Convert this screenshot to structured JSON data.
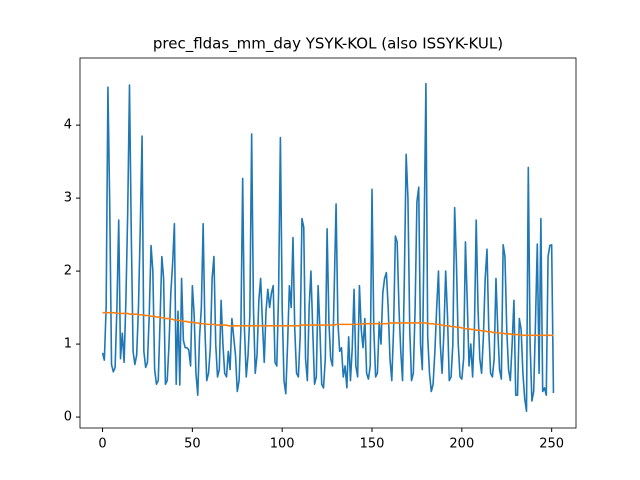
{
  "chart_data": {
    "type": "line",
    "title": "prec_fldas_mm_day YSYK-KOL (also ISSYK-KUL)",
    "x": [
      0,
      1,
      2,
      3,
      4,
      5,
      6,
      7,
      8,
      9,
      10,
      11,
      12,
      13,
      14,
      15,
      16,
      17,
      18,
      19,
      20,
      21,
      22,
      23,
      24,
      25,
      26,
      27,
      28,
      29,
      30,
      31,
      32,
      33,
      34,
      35,
      36,
      37,
      38,
      39,
      40,
      41,
      42,
      43,
      44,
      45,
      46,
      47,
      48,
      49,
      50,
      51,
      52,
      53,
      54,
      55,
      56,
      57,
      58,
      59,
      60,
      61,
      62,
      63,
      64,
      65,
      66,
      67,
      68,
      69,
      70,
      71,
      72,
      73,
      74,
      75,
      76,
      77,
      78,
      79,
      80,
      81,
      82,
      83,
      84,
      85,
      86,
      87,
      88,
      89,
      90,
      91,
      92,
      93,
      94,
      95,
      96,
      97,
      98,
      99,
      100,
      101,
      102,
      103,
      104,
      105,
      106,
      107,
      108,
      109,
      110,
      111,
      112,
      113,
      114,
      115,
      116,
      117,
      118,
      119,
      120,
      121,
      122,
      123,
      124,
      125,
      126,
      127,
      128,
      129,
      130,
      131,
      132,
      133,
      134,
      135,
      136,
      137,
      138,
      139,
      140,
      141,
      142,
      143,
      144,
      145,
      146,
      147,
      148,
      149,
      150,
      151,
      152,
      153,
      154,
      155,
      156,
      157,
      158,
      159,
      160,
      161,
      162,
      163,
      164,
      165,
      166,
      167,
      168,
      169,
      170,
      171,
      172,
      173,
      174,
      175,
      176,
      177,
      178,
      179,
      180,
      181,
      182,
      183,
      184,
      185,
      186,
      187,
      188,
      189,
      190,
      191,
      192,
      193,
      194,
      195,
      196,
      197,
      198,
      199,
      200,
      201,
      202,
      203,
      204,
      205,
      206,
      207,
      208,
      209,
      210,
      211,
      212,
      213,
      214,
      215,
      216,
      217,
      218,
      219,
      220,
      221,
      222,
      223,
      224,
      225,
      226,
      227,
      228,
      229,
      230,
      231,
      232,
      233,
      234,
      235,
      236,
      237,
      238,
      239,
      240,
      241,
      242,
      243,
      244,
      245,
      246,
      247,
      248,
      249,
      250,
      251
    ],
    "series": [
      {
        "color": "#1f77b4",
        "values": [
          0.88,
          0.78,
          1.5,
          4.52,
          2.9,
          0.72,
          0.62,
          0.68,
          1.5,
          2.7,
          0.8,
          1.15,
          0.75,
          1.6,
          2.8,
          4.55,
          2.5,
          0.9,
          0.72,
          0.85,
          1.5,
          2.6,
          3.85,
          0.9,
          0.68,
          0.75,
          1.4,
          2.35,
          2.0,
          0.65,
          0.45,
          0.5,
          1.3,
          2.2,
          1.9,
          0.45,
          0.5,
          1.0,
          1.7,
          2.1,
          2.65,
          0.45,
          1.45,
          0.44,
          1.9,
          1.05,
          0.95,
          0.95,
          0.92,
          0.7,
          1.8,
          1.4,
          0.6,
          0.3,
          1.1,
          1.5,
          2.65,
          1.2,
          0.5,
          0.6,
          0.95,
          1.9,
          2.2,
          1.0,
          0.55,
          0.65,
          1.6,
          1.0,
          0.6,
          0.55,
          0.9,
          0.65,
          1.35,
          1.1,
          0.85,
          0.35,
          0.5,
          1.2,
          3.27,
          1.2,
          0.55,
          0.85,
          1.4,
          3.88,
          1.5,
          0.6,
          0.85,
          1.6,
          1.9,
          1.3,
          0.75,
          1.45,
          1.75,
          1.5,
          1.7,
          1.8,
          0.75,
          0.7,
          1.7,
          3.83,
          1.5,
          0.5,
          0.32,
          1.0,
          1.8,
          1.5,
          2.46,
          1.2,
          0.6,
          0.55,
          1.1,
          2.72,
          2.6,
          0.8,
          0.5,
          1.5,
          2.0,
          1.2,
          0.45,
          0.55,
          1.8,
          1.2,
          0.45,
          0.4,
          0.8,
          2.58,
          1.3,
          0.8,
          0.7,
          1.8,
          2.92,
          1.3,
          0.9,
          0.95,
          0.55,
          0.7,
          0.4,
          1.1,
          0.5,
          0.95,
          1.75,
          0.7,
          0.55,
          1.8,
          1.2,
          0.95,
          1.35,
          0.6,
          0.52,
          0.7,
          3.12,
          1.2,
          0.55,
          0.6,
          1.3,
          1.0,
          1.7,
          1.9,
          1.98,
          1.5,
          0.8,
          0.5,
          1.2,
          2.48,
          2.4,
          1.5,
          0.9,
          0.5,
          1.9,
          3.6,
          3.0,
          1.2,
          0.5,
          0.6,
          1.5,
          2.95,
          3.15,
          1.0,
          0.65,
          2.5,
          4.57,
          1.1,
          0.6,
          0.35,
          0.45,
          0.9,
          1.5,
          2.0,
          1.0,
          0.6,
          1.15,
          2.0,
          1.4,
          0.5,
          0.55,
          1.0,
          2.87,
          2.1,
          1.0,
          0.55,
          0.52,
          0.8,
          2.4,
          1.6,
          0.7,
          1.0,
          0.55,
          1.2,
          2.7,
          1.5,
          0.8,
          0.6,
          1.1,
          1.9,
          2.3,
          1.2,
          0.6,
          0.55,
          0.8,
          1.9,
          1.2,
          0.65,
          0.52,
          2.36,
          2.2,
          1.2,
          0.65,
          0.5,
          1.0,
          1.6,
          0.3,
          0.3,
          1.35,
          1.2,
          0.6,
          0.25,
          0.08,
          3.42,
          1.0,
          0.22,
          0.35,
          1.3,
          2.37,
          0.6,
          2.72,
          0.35,
          0.4,
          0.3,
          2.2,
          2.35,
          2.36,
          0.33
        ]
      },
      {
        "color": "#ff7f0e",
        "values": [
          1.43,
          1.43,
          1.43,
          1.43,
          1.43,
          1.43,
          1.43,
          1.43,
          1.42,
          1.42,
          1.42,
          1.42,
          1.42,
          1.42,
          1.42,
          1.41,
          1.41,
          1.41,
          1.41,
          1.41,
          1.4,
          1.4,
          1.4,
          1.4,
          1.39,
          1.39,
          1.39,
          1.38,
          1.38,
          1.38,
          1.37,
          1.37,
          1.37,
          1.36,
          1.36,
          1.35,
          1.35,
          1.35,
          1.34,
          1.34,
          1.33,
          1.33,
          1.33,
          1.32,
          1.32,
          1.31,
          1.31,
          1.31,
          1.3,
          1.3,
          1.3,
          1.29,
          1.29,
          1.29,
          1.28,
          1.28,
          1.28,
          1.28,
          1.27,
          1.27,
          1.27,
          1.27,
          1.27,
          1.26,
          1.26,
          1.26,
          1.26,
          1.26,
          1.26,
          1.26,
          1.25,
          1.25,
          1.25,
          1.25,
          1.25,
          1.25,
          1.25,
          1.25,
          1.25,
          1.25,
          1.25,
          1.25,
          1.25,
          1.25,
          1.25,
          1.25,
          1.25,
          1.25,
          1.25,
          1.25,
          1.25,
          1.25,
          1.25,
          1.25,
          1.25,
          1.25,
          1.25,
          1.25,
          1.25,
          1.25,
          1.25,
          1.25,
          1.25,
          1.25,
          1.25,
          1.25,
          1.25,
          1.25,
          1.25,
          1.25,
          1.26,
          1.26,
          1.26,
          1.26,
          1.26,
          1.26,
          1.26,
          1.26,
          1.26,
          1.26,
          1.26,
          1.26,
          1.26,
          1.26,
          1.26,
          1.26,
          1.26,
          1.26,
          1.26,
          1.26,
          1.27,
          1.27,
          1.27,
          1.27,
          1.27,
          1.27,
          1.27,
          1.27,
          1.27,
          1.27,
          1.27,
          1.27,
          1.27,
          1.27,
          1.27,
          1.28,
          1.28,
          1.28,
          1.28,
          1.28,
          1.28,
          1.28,
          1.28,
          1.28,
          1.28,
          1.28,
          1.28,
          1.28,
          1.28,
          1.28,
          1.29,
          1.29,
          1.29,
          1.29,
          1.29,
          1.29,
          1.29,
          1.29,
          1.29,
          1.29,
          1.29,
          1.29,
          1.29,
          1.29,
          1.29,
          1.29,
          1.29,
          1.29,
          1.29,
          1.29,
          1.29,
          1.28,
          1.28,
          1.28,
          1.28,
          1.27,
          1.27,
          1.27,
          1.26,
          1.26,
          1.26,
          1.25,
          1.25,
          1.25,
          1.24,
          1.24,
          1.24,
          1.23,
          1.23,
          1.23,
          1.22,
          1.22,
          1.21,
          1.21,
          1.21,
          1.2,
          1.2,
          1.2,
          1.19,
          1.19,
          1.19,
          1.18,
          1.18,
          1.18,
          1.17,
          1.17,
          1.17,
          1.16,
          1.16,
          1.16,
          1.15,
          1.15,
          1.15,
          1.15,
          1.14,
          1.14,
          1.14,
          1.14,
          1.13,
          1.13,
          1.13,
          1.13,
          1.13,
          1.12,
          1.12,
          1.12,
          1.12,
          1.12,
          1.12,
          1.12,
          1.12,
          1.12,
          1.12,
          1.12,
          1.12,
          1.12,
          1.12,
          1.12,
          1.12,
          1.12,
          1.12,
          1.12
        ]
      }
    ],
    "xlim": [
      -12.55,
      263.55
    ],
    "xticks": [
      0,
      50,
      100,
      150,
      200,
      250
    ],
    "ylim": [
      -0.15,
      4.92
    ],
    "yticks": [
      0,
      1,
      2,
      3,
      4
    ]
  }
}
